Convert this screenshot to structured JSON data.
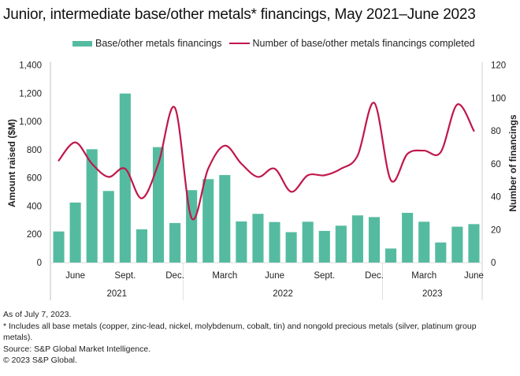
{
  "title": "Junior, intermediate base/other metals* financings, May 2021–June 2023",
  "legend": {
    "bars_label": "Base/other metals financings",
    "line_label": "Number of base/other metals financings completed"
  },
  "colors": {
    "bars": "#55BBA0",
    "line": "#C0174A",
    "axis": "#BFBFBF",
    "text": "#222222"
  },
  "footnotes": {
    "as_of": "As of July 7, 2023.",
    "includes": "* Includes all base metals (copper, zinc-lead, nickel, molybdenum, cobalt, tin) and nongold precious metals (silver, platinum group metals).",
    "source": "Source: S&P Global Market Intelligence.",
    "copyright": "© 2023 S&P Global."
  },
  "chart_data": {
    "type": "bar+line",
    "title": "Junior, intermediate base/other metals* financings, May 2021–June 2023",
    "categories": [
      "May 2021",
      "June 2021",
      "July 2021",
      "Aug. 2021",
      "Sept. 2021",
      "Oct. 2021",
      "Nov. 2021",
      "Dec. 2021",
      "Jan. 2022",
      "Feb. 2022",
      "March 2022",
      "April 2022",
      "May 2022",
      "June 2022",
      "July 2022",
      "Aug. 2022",
      "Sept. 2022",
      "Oct. 2022",
      "Nov. 2022",
      "Dec. 2022",
      "Jan. 2023",
      "Feb. 2023",
      "March 2023",
      "April 2023",
      "May 2023",
      "June 2023"
    ],
    "x_tick_labels": [
      {
        "index": 1,
        "label": "June"
      },
      {
        "index": 4,
        "label": "Sept."
      },
      {
        "index": 7,
        "label": "Dec."
      },
      {
        "index": 10,
        "label": "March"
      },
      {
        "index": 13,
        "label": "June"
      },
      {
        "index": 16,
        "label": "Sept."
      },
      {
        "index": 19,
        "label": "Dec."
      },
      {
        "index": 22,
        "label": "March"
      },
      {
        "index": 25,
        "label": "June"
      }
    ],
    "year_groups": [
      {
        "label": "2021",
        "start": 0,
        "end": 7
      },
      {
        "label": "2022",
        "start": 8,
        "end": 19
      },
      {
        "label": "2023",
        "start": 20,
        "end": 25
      }
    ],
    "series": [
      {
        "name": "Base/other metals financings",
        "type": "bar",
        "axis": "left",
        "values": [
          220,
          425,
          803,
          507,
          1198,
          235,
          818,
          280,
          513,
          591,
          620,
          291,
          345,
          287,
          215,
          289,
          224,
          261,
          334,
          322,
          99,
          352,
          289,
          142,
          254,
          272
        ]
      },
      {
        "name": "Number of base/other metals financings completed",
        "type": "line",
        "smooth": true,
        "axis": "right",
        "values": [
          62,
          73,
          60,
          52,
          57,
          39,
          60,
          94,
          27,
          57,
          71,
          60,
          52,
          57,
          43,
          53,
          53,
          57,
          65,
          97,
          50,
          66,
          68,
          67,
          96,
          80
        ]
      }
    ],
    "left_axis": {
      "label": "Amount raised ($M)",
      "ylim": [
        0,
        1400
      ],
      "ticks": [
        0,
        200,
        400,
        600,
        800,
        1000,
        1200,
        1400
      ],
      "tick_labels": [
        "0",
        "200",
        "400",
        "600",
        "800",
        "1,000",
        "1,200",
        "1,400"
      ]
    },
    "right_axis": {
      "label": "Number of financings",
      "ylim": [
        0,
        120
      ],
      "ticks": [
        0,
        20,
        40,
        60,
        80,
        100,
        120
      ],
      "tick_labels": [
        "0",
        "20",
        "40",
        "60",
        "80",
        "100",
        "120"
      ]
    },
    "grid": false,
    "legend_position": "top"
  }
}
